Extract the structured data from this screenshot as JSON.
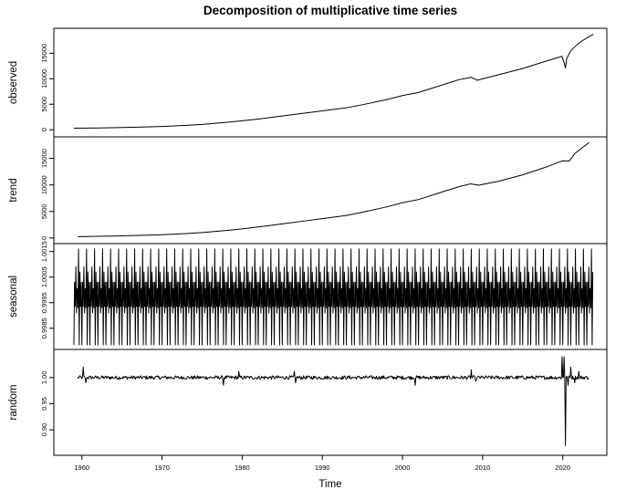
{
  "chart_data": {
    "type": "line",
    "title": "Decomposition of multiplicative time series",
    "xlabel": "Time",
    "xlim": [
      1956.5,
      2025.5
    ],
    "x_ticks": [
      1960,
      1970,
      1980,
      1990,
      2000,
      2010,
      2020
    ],
    "grid": false,
    "legend": "none",
    "line_color": "#000000",
    "panels": [
      {
        "name": "observed",
        "ylim": [
          -500,
          19000
        ],
        "y_ticks": [
          0,
          5000,
          10000,
          15000
        ],
        "x": [
          1959,
          1962,
          1965,
          1968,
          1970,
          1973,
          1975,
          1978,
          1980,
          1982,
          1985,
          1988,
          1990,
          1993,
          1995,
          1998,
          2000,
          2002,
          2005,
          2007,
          2008.6,
          2009.3,
          2012,
          2015,
          2018,
          2019.9,
          2020.2,
          2020.33,
          2020.5,
          2021,
          2022,
          2023,
          2023.8
        ],
        "values": [
          300,
          360,
          430,
          560,
          640,
          860,
          1050,
          1450,
          1750,
          2100,
          2700,
          3300,
          3700,
          4300,
          4900,
          5900,
          6700,
          7300,
          8800,
          9800,
          10300,
          9700,
          10800,
          12000,
          13500,
          14400,
          13000,
          12100,
          14000,
          15500,
          17000,
          18000,
          18700
        ]
      },
      {
        "name": "trend",
        "ylim": [
          -200,
          18200
        ],
        "y_ticks": [
          0,
          5000,
          10000,
          15000
        ],
        "x": [
          1959.5,
          1962,
          1965,
          1968,
          1970,
          1973,
          1975,
          1978,
          1980,
          1982,
          1985,
          1988,
          1990,
          1993,
          1995,
          1998,
          2000,
          2002,
          2005,
          2007,
          2008.5,
          2009.5,
          2012,
          2015,
          2018,
          2019.5,
          2020,
          2020.8,
          2021.5,
          2022.5,
          2023.3
        ],
        "values": [
          250,
          310,
          400,
          520,
          620,
          830,
          1020,
          1420,
          1720,
          2080,
          2650,
          3250,
          3650,
          4250,
          4850,
          5850,
          6650,
          7250,
          8700,
          9650,
          10200,
          9950,
          10700,
          11900,
          13400,
          14300,
          14550,
          14500,
          15900,
          17100,
          18000
        ]
      },
      {
        "name": "seasonal",
        "ylim": [
          0.99785,
          1.00163
        ],
        "y_ticks": [
          0.9985,
          0.9995,
          1.0005,
          1.0015
        ],
        "y_tick_labels": [
          "0.9985",
          "0.9995",
          "1.0005",
          "1.0015"
        ],
        "x_start": 1959,
        "x_end": 2023.8,
        "period": 1,
        "cycle": [
          0.99785,
          1.0003,
          0.99935,
          1.0009,
          0.9991,
          1.00005,
          0.9993,
          1.0016,
          0.99785,
          1.0007,
          0.99935,
          1.0003
        ]
      },
      {
        "name": "random",
        "ylim": [
          0.86,
          1.045
        ],
        "y_ticks": [
          0.9,
          0.95,
          1.0
        ],
        "y_tick_labels": [
          "0.90",
          "0.95",
          "1.00"
        ],
        "x_start": 1959.5,
        "x_end": 2023.3,
        "base": 1.0,
        "noise": 0.0035,
        "features": [
          {
            "x": 1960.2,
            "y": 1.02
          },
          {
            "x": 1960.5,
            "y": 0.99
          },
          {
            "x": 1977.7,
            "y": 0.985
          },
          {
            "x": 1979.6,
            "y": 1.012
          },
          {
            "x": 1986.5,
            "y": 1.012
          },
          {
            "x": 1986.7,
            "y": 0.99
          },
          {
            "x": 2001.6,
            "y": 0.985
          },
          {
            "x": 2008.6,
            "y": 1.015
          },
          {
            "x": 2009.2,
            "y": 0.993
          },
          {
            "x": 2019.9,
            "y": 1.04
          },
          {
            "x": 2020.15,
            "y": 1.04
          },
          {
            "x": 2020.33,
            "y": 0.87
          },
          {
            "x": 2020.7,
            "y": 0.985
          },
          {
            "x": 2021.0,
            "y": 1.02
          },
          {
            "x": 2021.5,
            "y": 0.99
          },
          {
            "x": 2022.0,
            "y": 1.012
          }
        ]
      }
    ]
  }
}
